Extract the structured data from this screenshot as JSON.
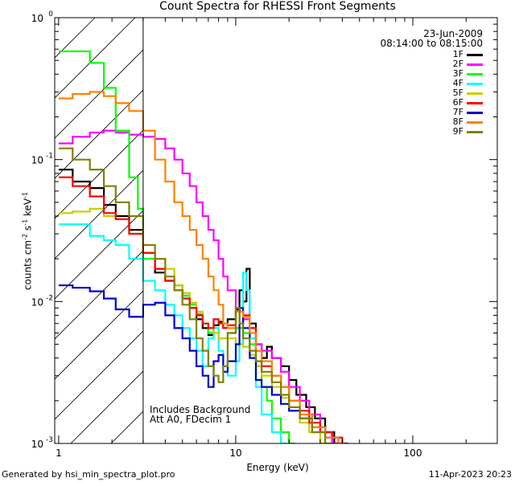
{
  "title": "Count Spectra for RHESSI Front Segments",
  "date": "23-Jun-2009",
  "time_range": "08:14:00 to 08:15:00",
  "xlabel": "Energy (keV)",
  "ylabel_parts": {
    "a": "counts cm",
    "b": "-2",
    "c": " s",
    "d": "-1",
    "e": " keV",
    "f": "-1"
  },
  "notes": [
    "Includes Background",
    "Att A0, FDecim 1"
  ],
  "footer_left": "Generated by hsi_min_spectra_plot.pro",
  "footer_right": "11-Apr-2023 20:23",
  "chart_data": {
    "type": "line",
    "xscale": "log",
    "yscale": "log",
    "xlim": [
      0.95,
      300
    ],
    "ylim": [
      0.001,
      1.0
    ],
    "x_ticks": [
      {
        "v": 1,
        "label": "1"
      },
      {
        "v": 10,
        "label": "10"
      },
      {
        "v": 100,
        "label": "100"
      }
    ],
    "y_ticks": [
      {
        "v": 0.001,
        "base": "10",
        "exp": "-3"
      },
      {
        "v": 0.01,
        "base": "10",
        "exp": "-2"
      },
      {
        "v": 0.1,
        "base": "10",
        "exp": "-1"
      },
      {
        "v": 1,
        "base": "10",
        "exp": "0"
      }
    ],
    "shaded_region_x": [
      0.95,
      3.0
    ],
    "threshold_x": 3.0,
    "legend": {
      "position": "top-right"
    },
    "series": [
      {
        "name": "1F",
        "color": "#000000",
        "points": [
          [
            1.0,
            0.085
          ],
          [
            1.2,
            0.07
          ],
          [
            1.5,
            0.063
          ],
          [
            1.8,
            0.048
          ],
          [
            2.1,
            0.04
          ],
          [
            2.5,
            0.032
          ],
          [
            3.0,
            0.022
          ],
          [
            3.5,
            0.016
          ],
          [
            4.0,
            0.014
          ],
          [
            4.5,
            0.013
          ],
          [
            5.0,
            0.011
          ],
          [
            5.5,
            0.009
          ],
          [
            6.0,
            0.0075
          ],
          [
            6.5,
            0.0065
          ],
          [
            7.0,
            0.0058
          ],
          [
            7.5,
            0.0068
          ],
          [
            8.0,
            0.0072
          ],
          [
            8.5,
            0.0065
          ],
          [
            9.0,
            0.0075
          ],
          [
            10.0,
            0.0088
          ],
          [
            10.5,
            0.012
          ],
          [
            11.0,
            0.01
          ],
          [
            11.5,
            0.017
          ],
          [
            12.0,
            0.007
          ],
          [
            13.0,
            0.005
          ],
          [
            14.0,
            0.004
          ],
          [
            15.0,
            0.0048
          ],
          [
            16.0,
            0.004
          ],
          [
            18.0,
            0.0035
          ],
          [
            20.0,
            0.0028
          ],
          [
            22.0,
            0.0022
          ],
          [
            25.0,
            0.0018
          ],
          [
            28.0,
            0.0015
          ],
          [
            32.0,
            0.0012
          ],
          [
            36.0,
            0.001
          ]
        ]
      },
      {
        "name": "2F",
        "color": "#ff00ff",
        "points": [
          [
            1.0,
            0.13
          ],
          [
            1.2,
            0.145
          ],
          [
            1.5,
            0.155
          ],
          [
            1.8,
            0.16
          ],
          [
            2.1,
            0.155
          ],
          [
            2.5,
            0.15
          ],
          [
            3.0,
            0.145
          ],
          [
            3.5,
            0.14
          ],
          [
            4.0,
            0.12
          ],
          [
            4.5,
            0.1
          ],
          [
            5.0,
            0.08
          ],
          [
            5.5,
            0.065
          ],
          [
            6.0,
            0.05
          ],
          [
            6.5,
            0.04
          ],
          [
            7.0,
            0.032
          ],
          [
            7.5,
            0.027
          ],
          [
            8.0,
            0.02
          ],
          [
            8.5,
            0.015
          ],
          [
            9.0,
            0.012
          ],
          [
            10.0,
            0.009
          ],
          [
            10.5,
            0.0085
          ],
          [
            11.0,
            0.0075
          ],
          [
            12.0,
            0.0065
          ],
          [
            13.0,
            0.005
          ],
          [
            14.0,
            0.0045
          ],
          [
            16.0,
            0.004
          ],
          [
            18.0,
            0.0032
          ],
          [
            20.0,
            0.0025
          ],
          [
            23.0,
            0.002
          ],
          [
            26.0,
            0.0016
          ],
          [
            30.0,
            0.0012
          ],
          [
            35.0,
            0.001
          ]
        ]
      },
      {
        "name": "3F",
        "color": "#00ff00",
        "points": [
          [
            1.0,
            0.58
          ],
          [
            1.2,
            0.58
          ],
          [
            1.5,
            0.48
          ],
          [
            1.8,
            0.32
          ],
          [
            2.1,
            0.16
          ],
          [
            2.5,
            0.075
          ],
          [
            2.8,
            0.045
          ],
          [
            3.0,
            0.02
          ],
          [
            3.5,
            0.017
          ],
          [
            4.0,
            0.014
          ],
          [
            4.5,
            0.013
          ],
          [
            5.0,
            0.011
          ],
          [
            5.5,
            0.0095
          ],
          [
            6.0,
            0.0082
          ],
          [
            6.5,
            0.007
          ],
          [
            7.0,
            0.006
          ],
          [
            7.5,
            0.0065
          ],
          [
            8.0,
            0.0055
          ],
          [
            9.0,
            0.006
          ],
          [
            10.0,
            0.0065
          ],
          [
            11.0,
            0.006
          ],
          [
            12.0,
            0.005
          ],
          [
            13.0,
            0.0035
          ],
          [
            14.0,
            0.0025
          ],
          [
            15.0,
            0.002
          ],
          [
            16.0,
            0.0015
          ],
          [
            18.0,
            0.0012
          ],
          [
            20.0,
            0.001
          ]
        ]
      },
      {
        "name": "4F",
        "color": "#00ffff",
        "points": [
          [
            1.0,
            0.035
          ],
          [
            1.2,
            0.035
          ],
          [
            1.5,
            0.029
          ],
          [
            1.8,
            0.027
          ],
          [
            2.1,
            0.025
          ],
          [
            2.5,
            0.02
          ],
          [
            3.0,
            0.014
          ],
          [
            3.5,
            0.012
          ],
          [
            4.0,
            0.0095
          ],
          [
            4.5,
            0.008
          ],
          [
            5.0,
            0.0065
          ],
          [
            5.5,
            0.0055
          ],
          [
            6.0,
            0.0045
          ],
          [
            6.5,
            0.0035
          ],
          [
            7.0,
            0.0055
          ],
          [
            7.5,
            0.0065
          ],
          [
            8.0,
            0.0045
          ],
          [
            8.5,
            0.0032
          ],
          [
            9.0,
            0.003
          ],
          [
            10.0,
            0.0038
          ],
          [
            10.5,
            0.005
          ],
          [
            11.0,
            0.016
          ],
          [
            11.5,
            0.012
          ],
          [
            12.0,
            0.0055
          ],
          [
            13.0,
            0.0025
          ],
          [
            14.0,
            0.0016
          ],
          [
            16.0,
            0.0012
          ],
          [
            18.0,
            0.001
          ]
        ]
      },
      {
        "name": "5F",
        "color": "#cccc00",
        "points": [
          [
            1.0,
            0.042
          ],
          [
            1.2,
            0.043
          ],
          [
            1.5,
            0.045
          ],
          [
            1.8,
            0.04
          ],
          [
            2.1,
            0.038
          ],
          [
            2.5,
            0.03
          ],
          [
            3.0,
            0.022
          ],
          [
            3.5,
            0.02
          ],
          [
            4.0,
            0.017
          ],
          [
            4.5,
            0.013
          ],
          [
            5.0,
            0.0115
          ],
          [
            5.5,
            0.0098
          ],
          [
            6.0,
            0.0085
          ],
          [
            6.5,
            0.007
          ],
          [
            7.0,
            0.0065
          ],
          [
            7.5,
            0.006
          ],
          [
            8.0,
            0.0055
          ],
          [
            9.0,
            0.0055
          ],
          [
            10.0,
            0.005
          ],
          [
            11.0,
            0.0048
          ],
          [
            12.0,
            0.0042
          ],
          [
            13.0,
            0.0035
          ],
          [
            14.0,
            0.003
          ],
          [
            16.0,
            0.0025
          ],
          [
            18.0,
            0.0021
          ],
          [
            20.0,
            0.0017
          ],
          [
            23.0,
            0.0014
          ],
          [
            26.0,
            0.0012
          ],
          [
            30.0,
            0.001
          ]
        ]
      },
      {
        "name": "6F",
        "color": "#ff0000",
        "points": [
          [
            1.0,
            0.075
          ],
          [
            1.2,
            0.065
          ],
          [
            1.5,
            0.055
          ],
          [
            1.8,
            0.042
          ],
          [
            2.1,
            0.038
          ],
          [
            2.5,
            0.03
          ],
          [
            3.0,
            0.022
          ],
          [
            3.5,
            0.017
          ],
          [
            4.0,
            0.014
          ],
          [
            4.5,
            0.012
          ],
          [
            5.0,
            0.0105
          ],
          [
            5.5,
            0.009
          ],
          [
            6.0,
            0.008
          ],
          [
            6.5,
            0.007
          ],
          [
            7.0,
            0.0065
          ],
          [
            7.5,
            0.0075
          ],
          [
            8.0,
            0.007
          ],
          [
            8.5,
            0.0065
          ],
          [
            9.0,
            0.0068
          ],
          [
            10.0,
            0.0085
          ],
          [
            11.0,
            0.008
          ],
          [
            12.0,
            0.0065
          ],
          [
            13.0,
            0.0045
          ],
          [
            14.0,
            0.0035
          ],
          [
            16.0,
            0.003
          ],
          [
            18.0,
            0.0025
          ],
          [
            20.0,
            0.002
          ],
          [
            23.0,
            0.0017
          ],
          [
            26.0,
            0.0014
          ],
          [
            30.0,
            0.0012
          ],
          [
            35.0,
            0.0011
          ],
          [
            40.0,
            0.001
          ]
        ]
      },
      {
        "name": "7F",
        "color": "#0000cc",
        "points": [
          [
            1.0,
            0.013
          ],
          [
            1.2,
            0.0125
          ],
          [
            1.5,
            0.0118
          ],
          [
            1.8,
            0.0105
          ],
          [
            2.1,
            0.0088
          ],
          [
            2.5,
            0.0078
          ],
          [
            3.0,
            0.0095
          ],
          [
            3.5,
            0.0098
          ],
          [
            4.0,
            0.008
          ],
          [
            4.5,
            0.0065
          ],
          [
            5.0,
            0.0055
          ],
          [
            5.5,
            0.0045
          ],
          [
            6.0,
            0.0035
          ],
          [
            6.5,
            0.003
          ],
          [
            7.0,
            0.0025
          ],
          [
            7.5,
            0.0038
          ],
          [
            8.0,
            0.0042
          ],
          [
            8.5,
            0.0032
          ],
          [
            9.0,
            0.0038
          ],
          [
            10.0,
            0.005
          ],
          [
            10.5,
            0.009
          ],
          [
            11.0,
            0.0065
          ],
          [
            12.0,
            0.004
          ],
          [
            13.0,
            0.0028
          ],
          [
            14.0,
            0.0025
          ],
          [
            16.0,
            0.0022
          ],
          [
            18.0,
            0.0019
          ],
          [
            20.0,
            0.0017
          ],
          [
            23.0,
            0.0015
          ],
          [
            27.0,
            0.0013
          ],
          [
            32.0,
            0.0011
          ],
          [
            38.0,
            0.001
          ]
        ]
      },
      {
        "name": "8F",
        "color": "#ff8000",
        "points": [
          [
            1.0,
            0.27
          ],
          [
            1.2,
            0.29
          ],
          [
            1.5,
            0.3
          ],
          [
            1.8,
            0.28
          ],
          [
            2.1,
            0.25
          ],
          [
            2.5,
            0.22
          ],
          [
            3.0,
            0.16
          ],
          [
            3.5,
            0.1
          ],
          [
            4.0,
            0.07
          ],
          [
            4.5,
            0.05
          ],
          [
            5.0,
            0.04
          ],
          [
            5.5,
            0.032
          ],
          [
            6.0,
            0.025
          ],
          [
            6.5,
            0.02
          ],
          [
            7.0,
            0.015
          ],
          [
            7.5,
            0.012
          ],
          [
            8.0,
            0.0095
          ],
          [
            8.5,
            0.007
          ],
          [
            9.0,
            0.0065
          ],
          [
            10.0,
            0.0085
          ],
          [
            11.0,
            0.0078
          ],
          [
            12.0,
            0.006
          ],
          [
            13.0,
            0.0045
          ],
          [
            14.0,
            0.0038
          ],
          [
            16.0,
            0.003
          ],
          [
            18.0,
            0.0025
          ],
          [
            20.0,
            0.002
          ],
          [
            23.0,
            0.0016
          ],
          [
            27.0,
            0.0013
          ],
          [
            32.0,
            0.0011
          ],
          [
            38.0,
            0.001
          ]
        ]
      },
      {
        "name": "9F",
        "color": "#808000",
        "points": [
          [
            1.0,
            0.12
          ],
          [
            1.2,
            0.1
          ],
          [
            1.5,
            0.085
          ],
          [
            1.8,
            0.065
          ],
          [
            2.1,
            0.05
          ],
          [
            2.5,
            0.04
          ],
          [
            3.0,
            0.025
          ],
          [
            3.5,
            0.02
          ],
          [
            4.0,
            0.015
          ],
          [
            4.5,
            0.012
          ],
          [
            5.0,
            0.0095
          ],
          [
            5.5,
            0.0075
          ],
          [
            6.0,
            0.0055
          ],
          [
            6.5,
            0.0045
          ],
          [
            7.0,
            0.0035
          ],
          [
            7.5,
            0.003
          ],
          [
            8.0,
            0.0027
          ],
          [
            8.5,
            0.0035
          ],
          [
            9.0,
            0.006
          ],
          [
            10.0,
            0.009
          ],
          [
            10.5,
            0.007
          ],
          [
            11.0,
            0.0055
          ],
          [
            12.0,
            0.0045
          ],
          [
            13.0,
            0.0038
          ],
          [
            14.0,
            0.0032
          ],
          [
            16.0,
            0.0027
          ],
          [
            18.0,
            0.0022
          ],
          [
            20.0,
            0.0018
          ],
          [
            23.0,
            0.0015
          ],
          [
            27.0,
            0.0012
          ],
          [
            32.0,
            0.001
          ]
        ]
      }
    ]
  }
}
